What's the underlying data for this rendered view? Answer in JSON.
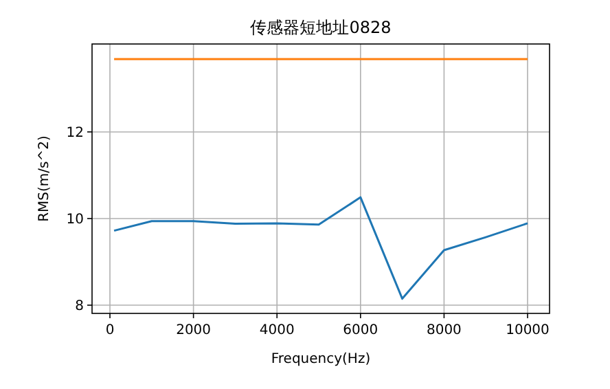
{
  "chart_data": {
    "type": "line",
    "title": "传感器短地址0828",
    "xlabel": "Frequency(Hz)",
    "ylabel": "RMS(m/s^2)",
    "x": [
      100,
      1000,
      2000,
      3000,
      4000,
      5000,
      6000,
      7000,
      8000,
      9000,
      10000
    ],
    "series": [
      {
        "color": "#1f77b4",
        "values": [
          9.72,
          9.94,
          9.94,
          9.88,
          9.89,
          9.86,
          10.49,
          8.15,
          9.27,
          9.57,
          9.89
        ]
      },
      {
        "color": "#ff7f0e",
        "x": [
          100,
          10000
        ],
        "values": [
          13.68,
          13.68
        ]
      }
    ],
    "xlim": [
      -428,
      10526
    ],
    "ylim": [
      7.81,
      14.03
    ],
    "xticks": [
      0,
      2000,
      4000,
      6000,
      8000,
      10000
    ],
    "yticks": [
      8,
      10,
      12
    ],
    "grid": true
  }
}
